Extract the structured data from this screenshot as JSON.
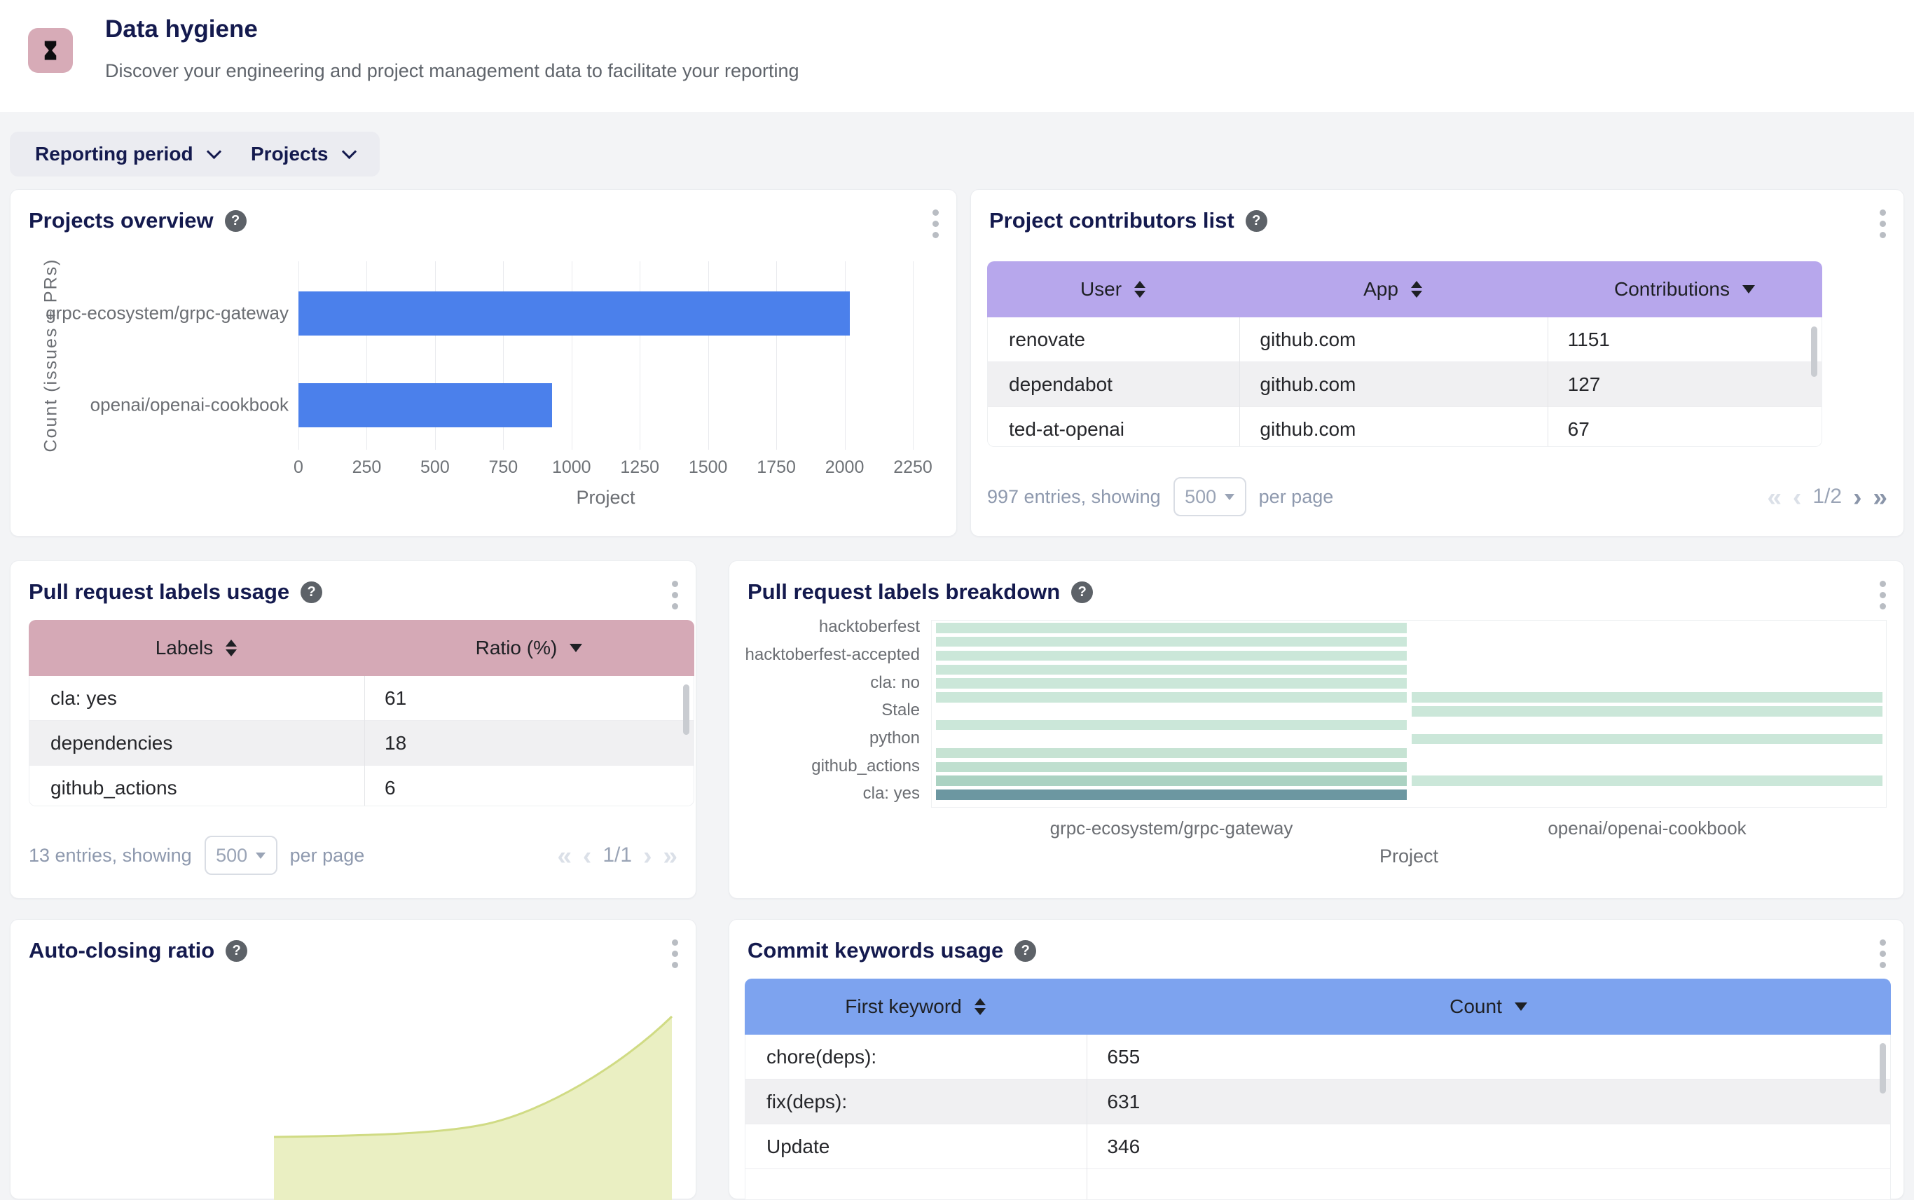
{
  "header": {
    "title": "Data hygiene",
    "subtitle": "Discover your engineering and project management data to facilitate your reporting",
    "icon": "hourglass-icon"
  },
  "filters": {
    "reporting_period_label": "Reporting period",
    "projects_label": "Projects"
  },
  "colors": {
    "bar_blue": "#4b80eb",
    "table_header_purple": "#b7a7ec",
    "table_header_pink": "#d5a9b6",
    "table_header_blue": "#7da3ef",
    "title_navy": "#141a4e",
    "row_alt": "#f0f0f2",
    "area_fill": "#eaefc2",
    "area_line": "#d0db84"
  },
  "cards": {
    "projects_overview": {
      "title": "Projects overview"
    },
    "contributors": {
      "title": "Project contributors list",
      "table": {
        "headers": [
          {
            "label": "User",
            "sort": "both"
          },
          {
            "label": "App",
            "sort": "both"
          },
          {
            "label": "Contributions",
            "sort": "desc"
          }
        ],
        "rows": [
          [
            "renovate",
            "github.com",
            "1151"
          ],
          [
            "dependabot",
            "github.com",
            "127"
          ],
          [
            "ted-at-openai",
            "github.com",
            "67"
          ]
        ]
      },
      "footer": {
        "entries": "997 entries, showing",
        "page_size": "500",
        "per_page": "per page",
        "page": "1/2"
      }
    },
    "labels_usage": {
      "title": "Pull request labels usage",
      "table": {
        "headers": [
          {
            "label": "Labels",
            "sort": "both"
          },
          {
            "label": "Ratio (%)",
            "sort": "desc"
          }
        ],
        "rows": [
          [
            "cla: yes",
            "61"
          ],
          [
            "dependencies",
            "18"
          ],
          [
            "github_actions",
            "6"
          ]
        ]
      },
      "footer": {
        "entries": "13 entries, showing",
        "page_size": "500",
        "per_page": "per page",
        "page": "1/1"
      }
    },
    "labels_breakdown": {
      "title": "Pull request labels breakdown"
    },
    "auto_closing": {
      "title": "Auto-closing ratio"
    },
    "commit_keywords": {
      "title": "Commit keywords usage",
      "table": {
        "headers": [
          {
            "label": "First keyword",
            "sort": "both"
          },
          {
            "label": "Count",
            "sort": "desc"
          }
        ],
        "rows": [
          [
            "chore(deps):",
            "655"
          ],
          [
            "fix(deps):",
            "631"
          ],
          [
            "Update",
            "346"
          ]
        ]
      }
    }
  },
  "chart_data": [
    {
      "id": "projects-overview",
      "type": "bar",
      "orientation": "horizontal",
      "title": "Projects overview",
      "categories": [
        "grpc-ecosystem/grpc-gateway",
        "openai/openai-cookbook"
      ],
      "values": [
        2020,
        930
      ],
      "xlabel": "Project",
      "ylabel": "Count (issues + PRs)",
      "xlim": [
        0,
        2250
      ],
      "xticks": [
        0,
        250,
        500,
        750,
        1000,
        1250,
        1500,
        1750,
        2000,
        2250
      ],
      "bar_color": "#4b80eb",
      "grid": true,
      "legend_position": "none"
    },
    {
      "id": "pr-labels-breakdown",
      "type": "heatmap",
      "title": "Pull request labels breakdown",
      "columns": [
        "grpc-ecosystem/grpc-gateway",
        "openai/openai-cookbook"
      ],
      "xlabel": "Project",
      "rows": [
        {
          "label": "hacktoberfest",
          "cells": [
            "#cbe7d9",
            null
          ]
        },
        {
          "label": "",
          "cells": [
            "#cbe7d9",
            null
          ]
        },
        {
          "label": "hacktoberfest-accepted",
          "cells": [
            "#cbe7d9",
            null
          ]
        },
        {
          "label": "",
          "cells": [
            "#cbe7d9",
            null
          ]
        },
        {
          "label": "cla: no",
          "cells": [
            "#cbe7d9",
            null
          ]
        },
        {
          "label": "",
          "cells": [
            "#cbe7d9",
            "#cbe7d9"
          ]
        },
        {
          "label": "Stale",
          "cells": [
            null,
            "#cbe7d9"
          ]
        },
        {
          "label": "",
          "cells": [
            "#cbe7d9",
            null
          ]
        },
        {
          "label": "python",
          "cells": [
            null,
            "#cbe7d9"
          ]
        },
        {
          "label": "",
          "cells": [
            "#c6e3d3",
            null
          ]
        },
        {
          "label": "github_actions",
          "cells": [
            "#bfdfcf",
            null
          ]
        },
        {
          "label": "",
          "cells": [
            "#abd2c2",
            "#cbe7d9"
          ]
        },
        {
          "label": "cla: yes",
          "cells": [
            "#6c97a1",
            null
          ]
        }
      ]
    },
    {
      "id": "auto-closing-ratio",
      "type": "area",
      "title": "Auto-closing ratio",
      "note": "only the lower-right tail of the curve is visible; no axis labels shown",
      "fill_color": "#eaefc2",
      "line_color": "#d0db84",
      "points_norm": [
        [
          0.38,
          0.02
        ],
        [
          0.57,
          0.03
        ],
        [
          0.69,
          0.1
        ],
        [
          0.8,
          0.3
        ],
        [
          0.89,
          0.58
        ],
        [
          0.96,
          0.96
        ]
      ]
    }
  ]
}
